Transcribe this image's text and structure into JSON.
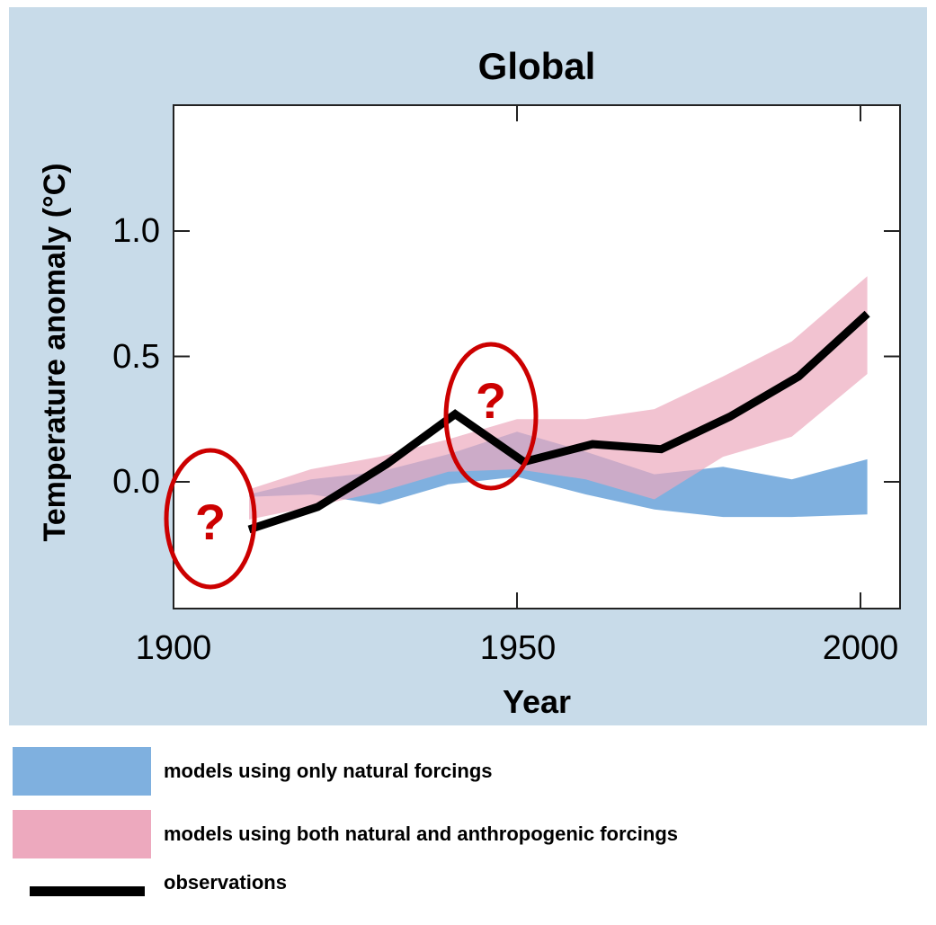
{
  "chart_data": {
    "type": "area",
    "title": "Global",
    "xlabel": "Year",
    "ylabel": "Temperature anomaly (°C)",
    "xlim": [
      1900,
      2005
    ],
    "ylim": [
      -0.5,
      1.5
    ],
    "xticks": [
      1900,
      1950,
      2000
    ],
    "yticks": [
      0.0,
      0.5,
      1.0
    ],
    "xtick_labels": [
      "1900",
      "1950",
      "2000"
    ],
    "ytick_labels": [
      "0.0",
      "0.5",
      "1.0"
    ],
    "grid": false,
    "legend_position": "below",
    "annotations": [
      "?",
      "?"
    ],
    "series": [
      {
        "name": "models using only natural forcings",
        "kind": "band",
        "color": "#7fb0df",
        "x": [
          1911,
          1920,
          1930,
          1940,
          1950,
          1960,
          1970,
          1980,
          1990,
          2001
        ],
        "lower": [
          -0.06,
          -0.05,
          -0.09,
          -0.01,
          0.02,
          -0.05,
          -0.11,
          -0.14,
          -0.14,
          -0.13
        ],
        "upper": [
          -0.05,
          0.01,
          0.04,
          0.11,
          0.2,
          0.12,
          0.03,
          0.06,
          0.01,
          0.09
        ]
      },
      {
        "name": "models using both natural and anthropogenic forcings",
        "kind": "band",
        "color": "#eda9be",
        "x": [
          1911,
          1920,
          1930,
          1940,
          1950,
          1960,
          1970,
          1980,
          1990,
          2001
        ],
        "lower": [
          -0.15,
          -0.1,
          -0.04,
          0.04,
          0.05,
          0.01,
          -0.07,
          0.1,
          0.18,
          0.43
        ],
        "upper": [
          -0.03,
          0.05,
          0.1,
          0.17,
          0.25,
          0.25,
          0.29,
          0.42,
          0.56,
          0.82
        ]
      },
      {
        "name": "observations",
        "kind": "line",
        "color": "#000000",
        "x": [
          1911,
          1921,
          1931,
          1941,
          1951,
          1961,
          1971,
          1981,
          1991,
          2001
        ],
        "y": [
          -0.19,
          -0.1,
          0.07,
          0.27,
          0.08,
          0.15,
          0.13,
          0.26,
          0.42,
          0.67
        ]
      }
    ]
  },
  "legend": {
    "items": [
      {
        "label": "models using only natural forcings",
        "color": "#7fb0df"
      },
      {
        "label": "models using both natural and anthropogenic forcings",
        "color": "#eda9be"
      },
      {
        "label": "observations",
        "color": "#000000"
      }
    ]
  },
  "colors": {
    "panel_background": "#c8dbe9",
    "plot_background": "#ffffff",
    "annotation": "#cc0000",
    "overlap": "#a683b5"
  }
}
